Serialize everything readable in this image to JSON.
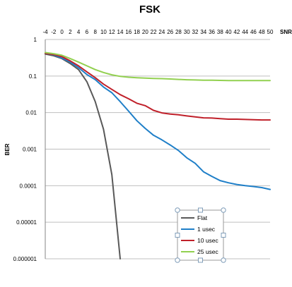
{
  "chart_data": {
    "type": "line",
    "title": "FSK",
    "xlabel": "SNR",
    "ylabel": "BER",
    "y_scale": "log",
    "xlim": [
      -4,
      50
    ],
    "ylim": [
      1e-06,
      1
    ],
    "x_tick_labels": [
      "-4",
      "-2",
      "0",
      "2",
      "4",
      "6",
      "8",
      "10",
      "12",
      "14",
      "16",
      "18",
      "20",
      "22",
      "24",
      "26",
      "28",
      "30",
      "32",
      "34",
      "36",
      "38",
      "40",
      "42",
      "44",
      "46",
      "48",
      "50"
    ],
    "y_tick_labels": [
      "1",
      "0.1",
      "0.01",
      "0.001",
      "0.0001",
      "0.00001",
      "0.000001"
    ],
    "x_axis_position": "top",
    "grid": "horizontal",
    "legend_position": "lower-right, selected",
    "colors": {
      "Flat": "#595959",
      "1 usec": "#1f7fc8",
      "10 usec": "#c0202a",
      "25 usec": "#92d050"
    },
    "series": [
      {
        "name": "Flat",
        "x": [
          -4,
          -2,
          0,
          2,
          4,
          6,
          8,
          10,
          12,
          14
        ],
        "y": [
          0.4,
          0.36,
          0.3,
          0.22,
          0.15,
          0.07,
          0.02,
          0.0035,
          0.0002,
          1e-06
        ]
      },
      {
        "name": "1 usec",
        "x": [
          -4,
          -2,
          0,
          2,
          4,
          6,
          8,
          10,
          12,
          14,
          16,
          18,
          20,
          22,
          24,
          26,
          28,
          30,
          32,
          34,
          36,
          38,
          40,
          42,
          44,
          46,
          48,
          50
        ],
        "y": [
          0.42,
          0.38,
          0.31,
          0.24,
          0.17,
          0.11,
          0.08,
          0.05,
          0.035,
          0.02,
          0.011,
          0.006,
          0.0037,
          0.0024,
          0.0018,
          0.0013,
          0.00092,
          0.00058,
          0.00041,
          0.00024,
          0.00018,
          0.000138,
          0.00012,
          0.000108,
          0.0001,
          9.5e-05,
          8.9e-05,
          7.9e-05
        ]
      },
      {
        "name": "10 usec",
        "x": [
          -4,
          -2,
          0,
          2,
          4,
          6,
          8,
          10,
          12,
          14,
          16,
          18,
          20,
          22,
          24,
          26,
          28,
          30,
          32,
          34,
          36,
          38,
          40,
          42,
          44,
          46,
          48,
          50
        ],
        "y": [
          0.42,
          0.39,
          0.34,
          0.26,
          0.19,
          0.13,
          0.09,
          0.06,
          0.043,
          0.031,
          0.024,
          0.018,
          0.0155,
          0.0115,
          0.0098,
          0.0091,
          0.0087,
          0.0081,
          0.0076,
          0.0072,
          0.0071,
          0.0068,
          0.0066,
          0.0066,
          0.0065,
          0.0064,
          0.0063,
          0.0063
        ]
      },
      {
        "name": "25 usec",
        "x": [
          -4,
          -2,
          0,
          2,
          4,
          6,
          8,
          10,
          12,
          14,
          16,
          18,
          20,
          22,
          24,
          26,
          28,
          30,
          32,
          34,
          36,
          38,
          40,
          42,
          44,
          46,
          48,
          50
        ],
        "y": [
          0.44,
          0.41,
          0.37,
          0.3,
          0.24,
          0.19,
          0.15,
          0.125,
          0.108,
          0.098,
          0.093,
          0.09,
          0.088,
          0.086,
          0.085,
          0.083,
          0.081,
          0.079,
          0.078,
          0.077,
          0.077,
          0.076,
          0.075,
          0.075,
          0.075,
          0.075,
          0.075,
          0.075
        ]
      }
    ]
  }
}
